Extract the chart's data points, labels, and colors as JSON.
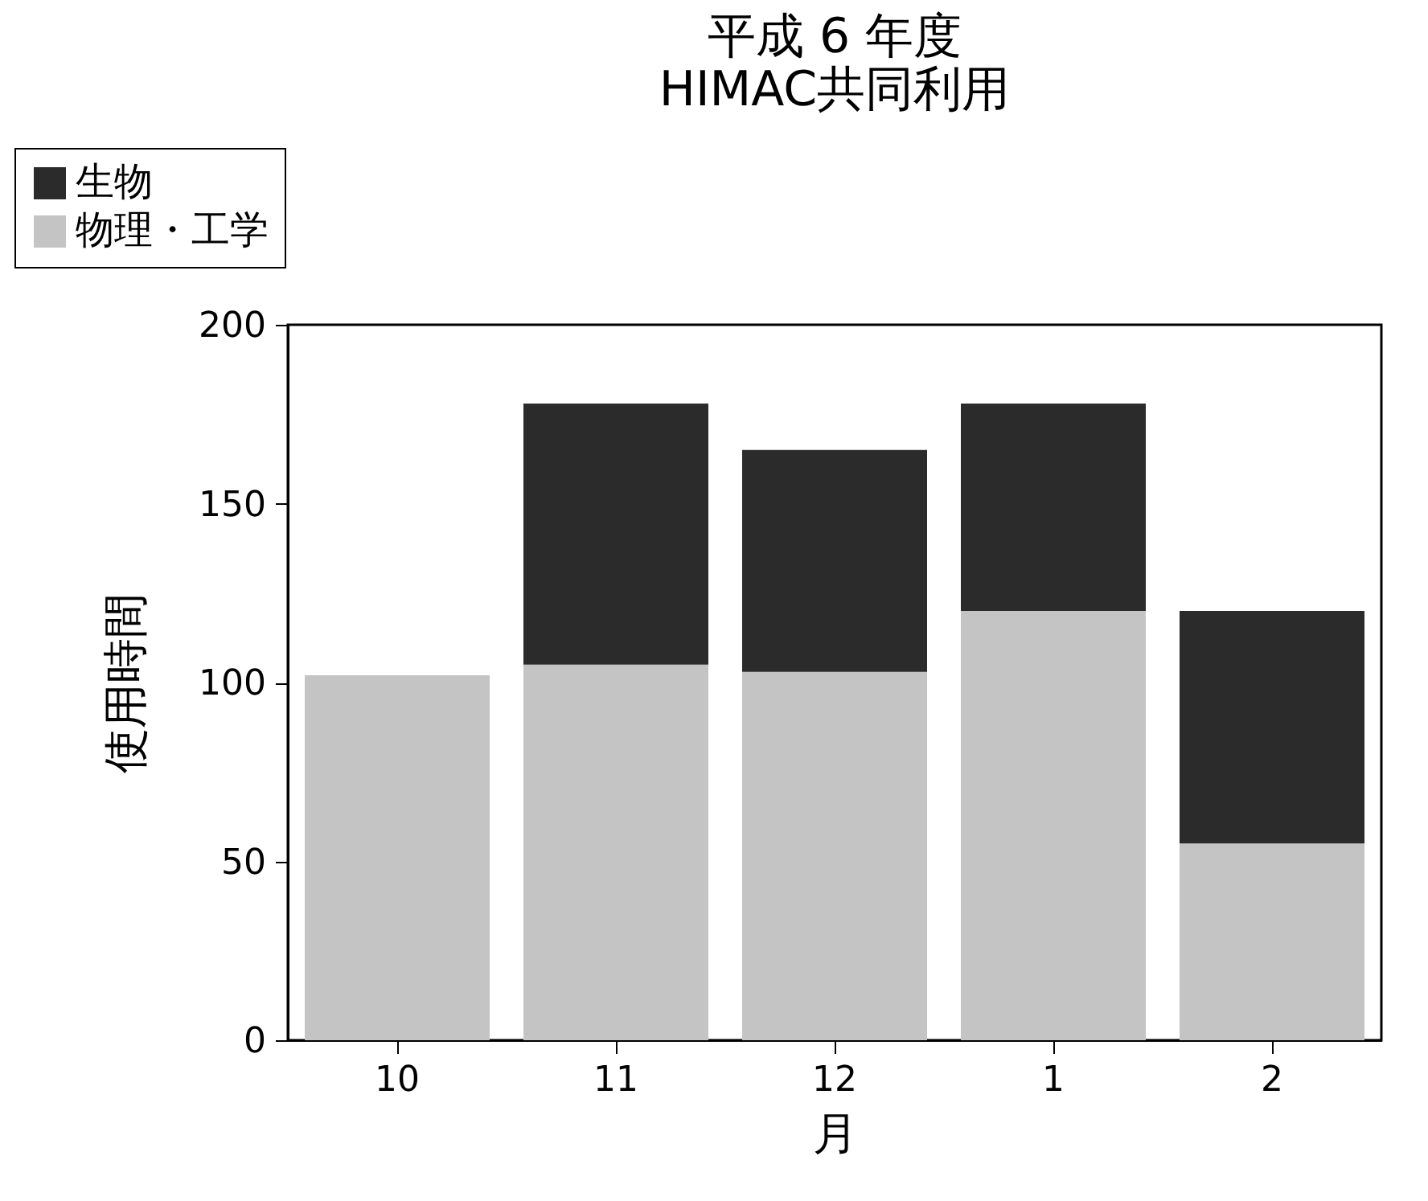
{
  "chart_data": {
    "type": "bar",
    "title": "平成 6 年度",
    "subtitle": "HIMAC共同利用",
    "xlabel": "月",
    "ylabel": "使用時間",
    "categories": [
      "10",
      "11",
      "12",
      "1",
      "2"
    ],
    "series": [
      {
        "name": "物理・工学",
        "color": "#c4c4c4",
        "values": [
          102,
          105,
          103,
          120,
          55
        ]
      },
      {
        "name": "生物",
        "color": "#2b2b2b",
        "values": [
          null,
          73,
          62,
          58,
          65
        ]
      }
    ],
    "stacked": true,
    "ylim": [
      0,
      200
    ],
    "yticks": [
      0,
      50,
      100,
      150,
      200
    ],
    "grid": false,
    "legend": "top left"
  }
}
